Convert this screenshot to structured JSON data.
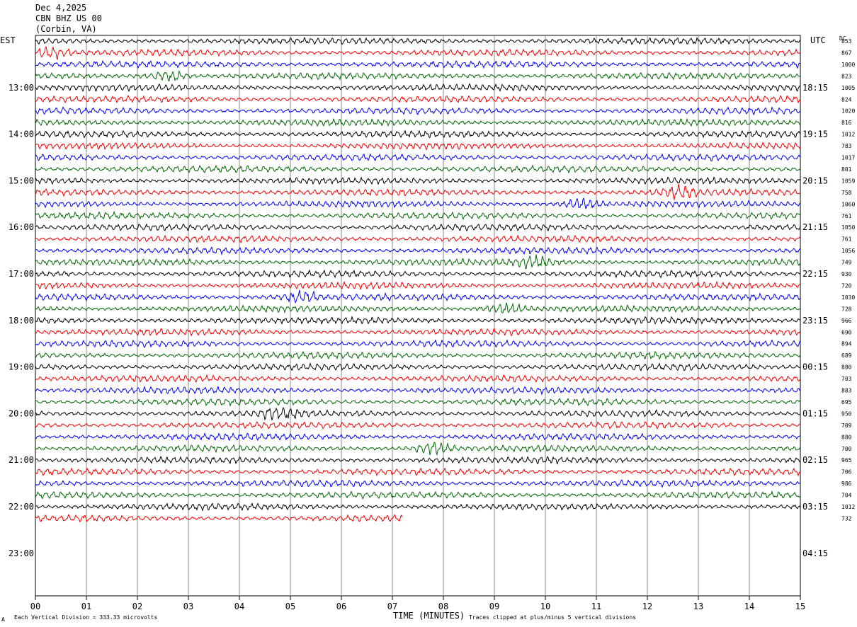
{
  "header": {
    "date": "Dec 4,2025",
    "station": "CBN BHZ US 00",
    "location": "(Corbin, VA)"
  },
  "left_zone": "EST",
  "right_zone": "UTC",
  "dc_label": "DC",
  "footer": {
    "x_axis_title": "TIME (MINUTES)",
    "scale_note": "Each Vertical Division =  333.33 microvolts",
    "clip_note": "Traces clipped at plus/minus 5 vertical divisions",
    "corner_mark": "A"
  },
  "chart_data": {
    "type": "line",
    "description_type": "helicorder seismogram",
    "xlabel": "TIME (MINUTES)",
    "xlim": [
      0,
      15
    ],
    "x_ticks": [
      "00",
      "01",
      "02",
      "03",
      "04",
      "05",
      "06",
      "07",
      "08",
      "09",
      "10",
      "11",
      "12",
      "13",
      "14",
      "15"
    ],
    "est_hour_labels": [
      "13:00",
      "14:00",
      "15:00",
      "16:00",
      "17:00",
      "18:00",
      "19:00",
      "20:00",
      "21:00",
      "22:00",
      "23:00"
    ],
    "utc_hour_labels": [
      "18:15",
      "19:15",
      "20:15",
      "21:15",
      "22:15",
      "23:15",
      "00:15",
      "01:15",
      "02:15",
      "03:15",
      "04:15"
    ],
    "trace_colors": [
      "#000000",
      "#ee0000",
      "#0000ee",
      "#006600"
    ],
    "dc_offsets": [
      "853",
      "867",
      "1000",
      "823",
      "1005",
      "824",
      "1020",
      "816",
      "1012",
      "783",
      "1017",
      "801",
      "1059",
      "758",
      "1060",
      "761",
      "1050",
      "761",
      "1056",
      "749",
      "930",
      "720",
      "1030",
      "728",
      "966",
      "690",
      "894",
      "689",
      "880",
      "703",
      "883",
      "695",
      "950",
      "709",
      "880",
      "700",
      "965",
      "706",
      "986",
      "704",
      "1012",
      "732"
    ],
    "traces_complete": 41,
    "last_trace_end_minute": 7.2,
    "event_bursts": [
      {
        "trace": 1,
        "minute": 0.3
      },
      {
        "trace": 3,
        "minute": 2.6
      },
      {
        "trace": 13,
        "minute": 12.6
      },
      {
        "trace": 14,
        "minute": 10.7
      },
      {
        "trace": 19,
        "minute": 9.8
      },
      {
        "trace": 22,
        "minute": 5.2
      },
      {
        "trace": 23,
        "minute": 9.2
      },
      {
        "trace": 32,
        "minute": 4.8
      },
      {
        "trace": 35,
        "minute": 7.8
      }
    ]
  }
}
